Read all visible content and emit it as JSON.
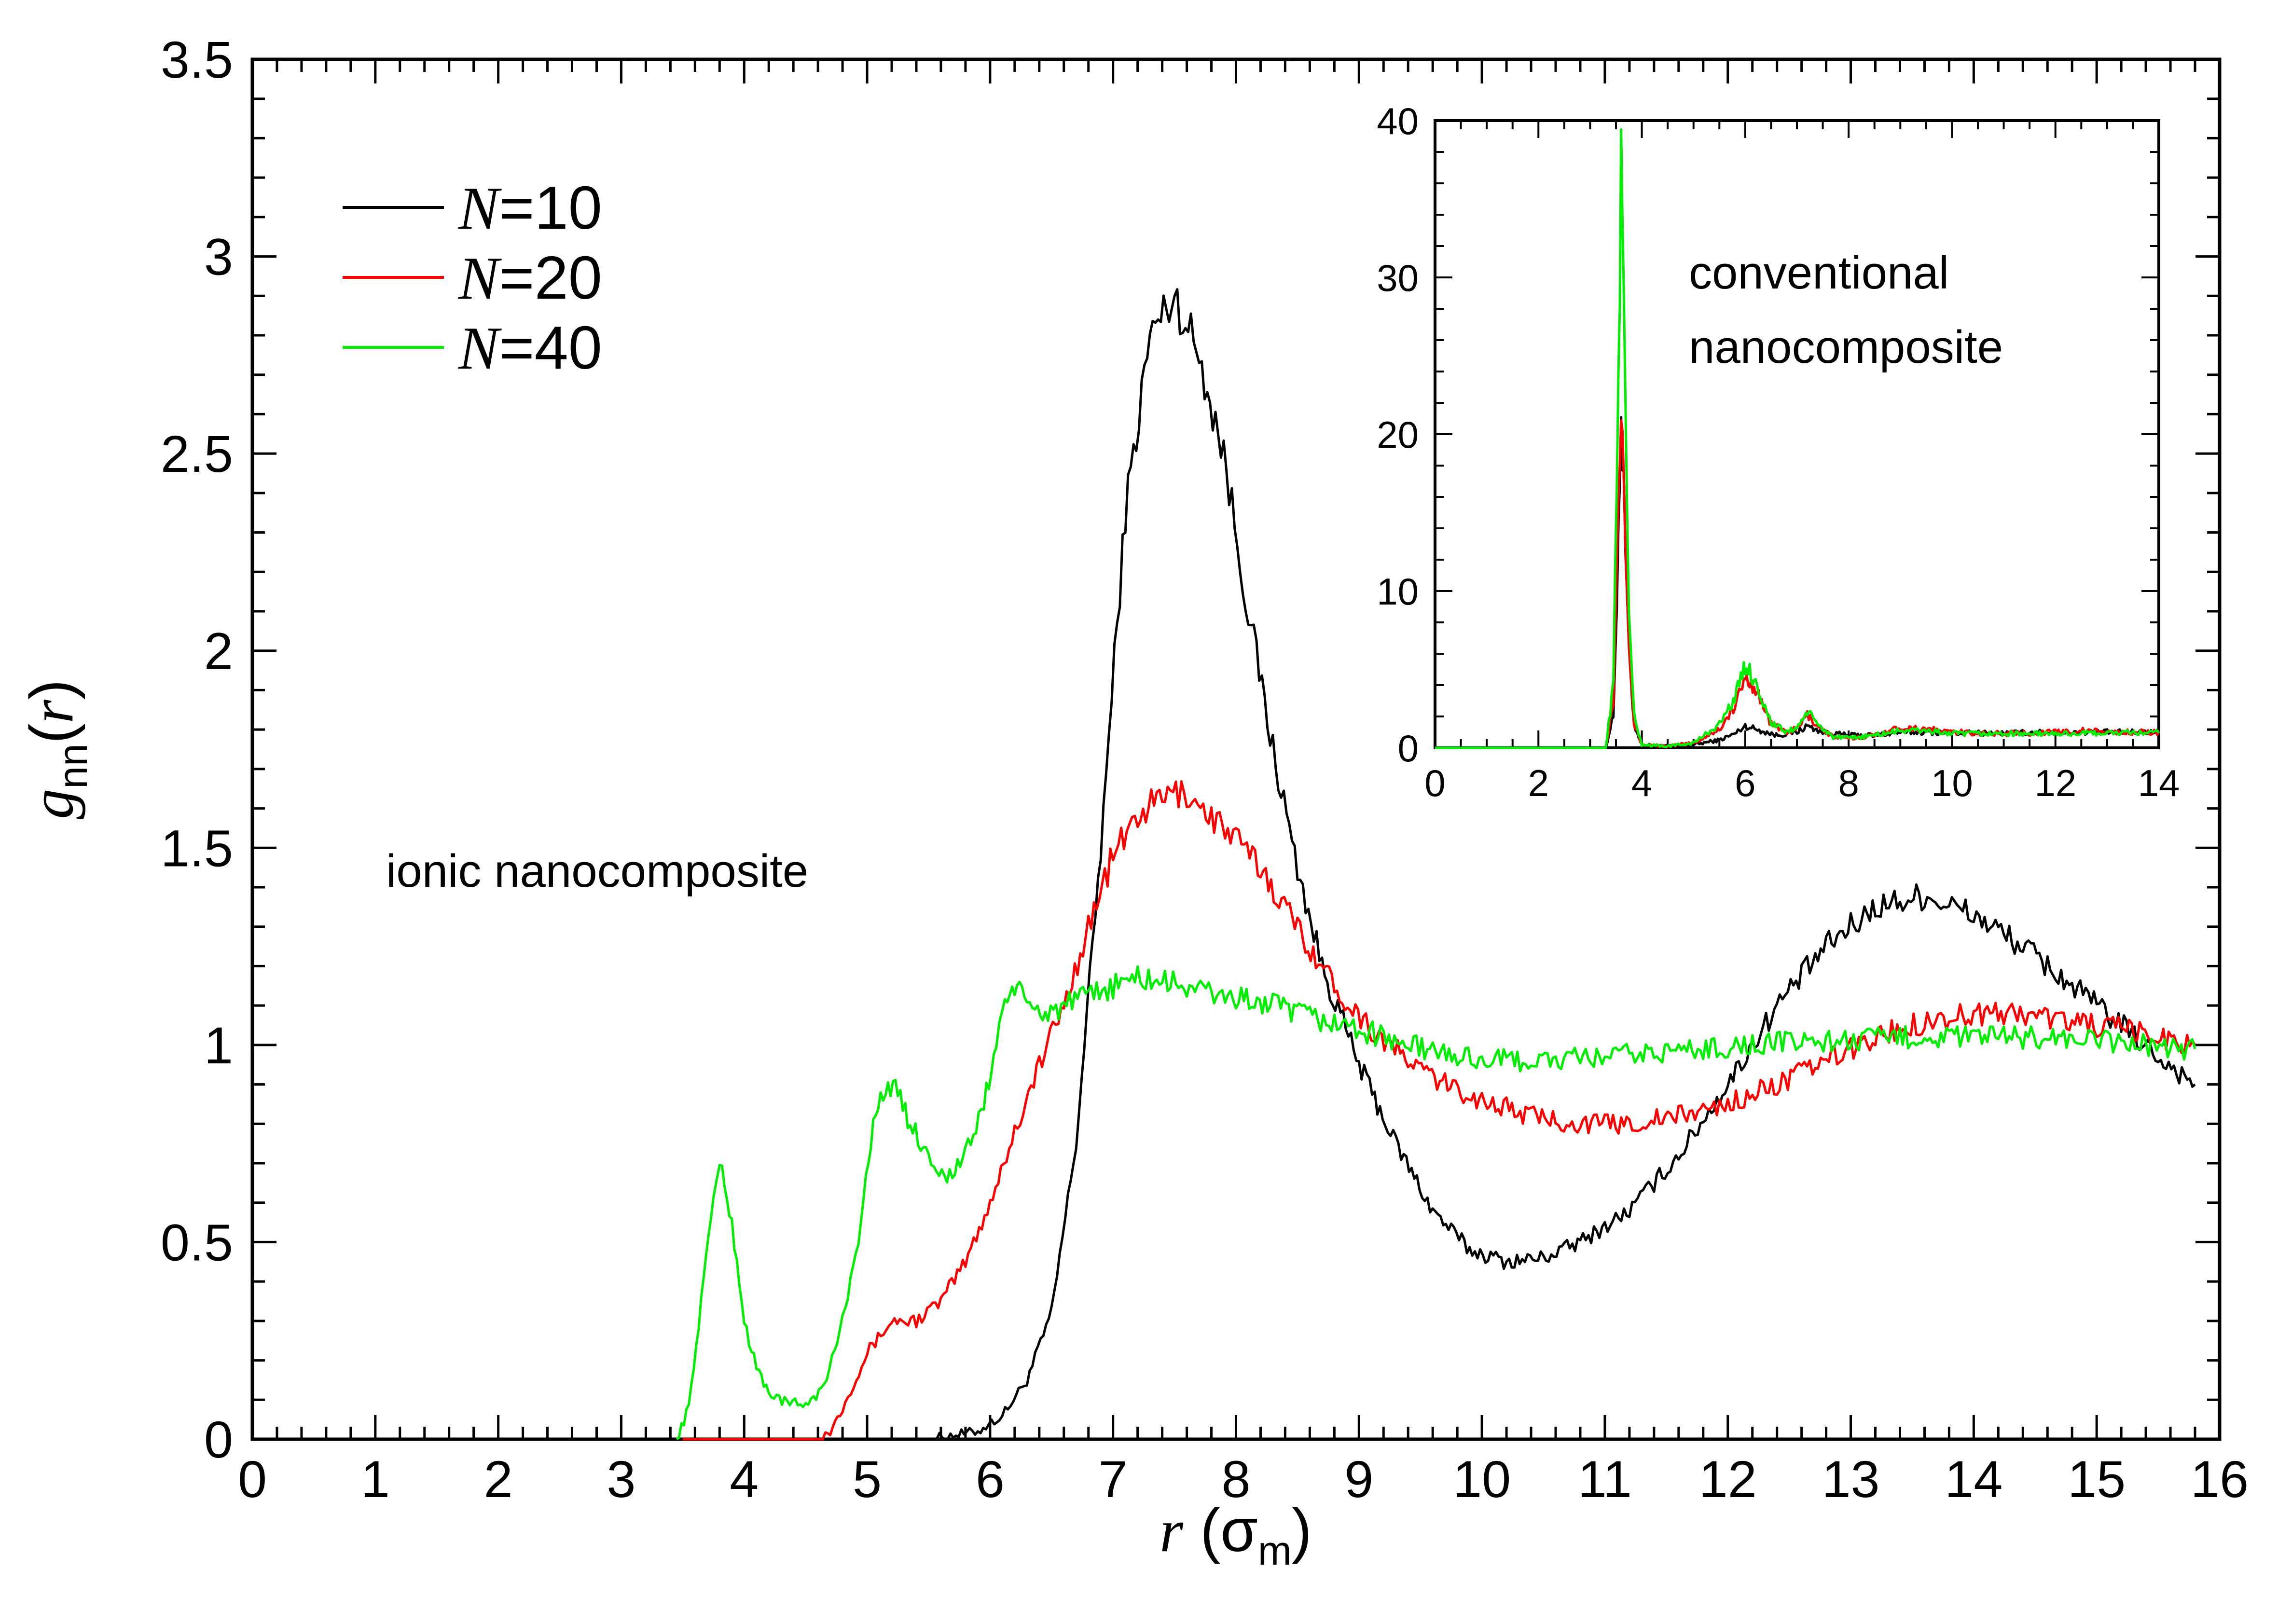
{
  "chart_data": [
    {
      "id": "main",
      "type": "line",
      "ylabel": {
        "symbol": "g",
        "subscript": "nn",
        "open": "(",
        "var": "r",
        "close": ")"
      },
      "xlabel": {
        "var": "r",
        "open": " (",
        "unit": "σ",
        "unit_sub": "m",
        "close": ")"
      },
      "xlim": [
        0,
        16
      ],
      "ylim": [
        0,
        3.5
      ],
      "xticks": [
        0,
        1,
        2,
        3,
        4,
        5,
        6,
        7,
        8,
        9,
        10,
        11,
        12,
        13,
        14,
        15,
        16
      ],
      "yticks": [
        0,
        0.5,
        1,
        1.5,
        2,
        2.5,
        3,
        3.5
      ],
      "xtick_labels": [
        "0",
        "1",
        "2",
        "3",
        "4",
        "5",
        "6",
        "7",
        "8",
        "9",
        "10",
        "11",
        "12",
        "13",
        "14",
        "15",
        "16"
      ],
      "ytick_labels": [
        "0",
        "0.5",
        "1",
        "1.5",
        "2",
        "2.5",
        "3",
        "3.5"
      ],
      "annotation": "ionic nanocomposite",
      "legend_position": "top-left",
      "series": [
        {
          "name_var": "N",
          "name_value": "=10",
          "color": "#000000",
          "x": [
            3.5,
            5.5,
            5.9,
            6.1,
            6.3,
            6.5,
            6.7,
            6.9,
            7.1,
            7.3,
            7.5,
            7.7,
            7.9,
            8.1,
            8.3,
            8.5,
            8.7,
            9.0,
            9.3,
            9.6,
            9.9,
            10.2,
            10.5,
            10.8,
            11.2,
            11.6,
            12.0,
            12.4,
            12.8,
            13.2,
            13.6,
            14.0,
            14.4,
            14.8,
            15.2,
            15.5,
            15.8
          ],
          "y": [
            0,
            0,
            0.02,
            0.06,
            0.15,
            0.32,
            0.75,
            1.5,
            2.35,
            2.8,
            2.9,
            2.75,
            2.5,
            2.1,
            1.75,
            1.45,
            1.2,
            0.95,
            0.75,
            0.58,
            0.48,
            0.45,
            0.46,
            0.5,
            0.58,
            0.72,
            0.9,
            1.1,
            1.25,
            1.35,
            1.38,
            1.33,
            1.25,
            1.15,
            1.05,
            0.97,
            0.9
          ]
        },
        {
          "name_var": "N",
          "name_value": "=20",
          "color": "#ff0000",
          "x": [
            3.5,
            4.6,
            4.7,
            4.8,
            5.0,
            5.2,
            5.4,
            5.6,
            5.8,
            6.0,
            6.2,
            6.4,
            6.6,
            6.8,
            7.0,
            7.2,
            7.4,
            7.6,
            7.8,
            8.0,
            8.2,
            8.5,
            8.8,
            9.1,
            9.4,
            9.7,
            10.0,
            10.4,
            10.8,
            11.2,
            11.6,
            12.0,
            12.4,
            12.8,
            13.2,
            13.6,
            14.0,
            14.4,
            14.8,
            15.2,
            15.5,
            15.8
          ],
          "y": [
            0,
            0,
            0.02,
            0.08,
            0.22,
            0.3,
            0.3,
            0.35,
            0.45,
            0.6,
            0.78,
            0.95,
            1.1,
            1.3,
            1.48,
            1.58,
            1.63,
            1.64,
            1.58,
            1.52,
            1.45,
            1.3,
            1.15,
            1.04,
            0.96,
            0.9,
            0.86,
            0.82,
            0.8,
            0.8,
            0.82,
            0.85,
            0.9,
            0.96,
            1.02,
            1.06,
            1.08,
            1.08,
            1.06,
            1.04,
            1.02,
            1.0
          ]
        },
        {
          "name_var": "N",
          "name_value": "=40",
          "color": "#00ee00",
          "x": [
            3.45,
            3.55,
            3.65,
            3.75,
            3.8,
            3.9,
            4.0,
            4.1,
            4.2,
            4.35,
            4.5,
            4.65,
            4.8,
            4.95,
            5.05,
            5.15,
            5.25,
            5.35,
            5.5,
            5.65,
            5.8,
            5.95,
            6.05,
            6.1,
            6.2,
            6.3,
            6.45,
            6.6,
            6.8,
            7.0,
            7.2,
            7.4,
            7.6,
            7.8,
            8.0,
            8.3,
            8.6,
            9.0,
            9.4,
            9.8,
            10.2,
            10.6,
            11.0,
            11.4,
            11.8,
            12.2,
            12.6,
            13.0,
            13.4,
            13.8,
            14.2,
            14.6,
            15.0,
            15.4,
            15.8
          ],
          "y": [
            0,
            0.08,
            0.35,
            0.62,
            0.7,
            0.55,
            0.3,
            0.18,
            0.12,
            0.09,
            0.09,
            0.13,
            0.3,
            0.55,
            0.8,
            0.9,
            0.88,
            0.8,
            0.72,
            0.66,
            0.72,
            0.85,
            1.0,
            1.1,
            1.15,
            1.1,
            1.08,
            1.1,
            1.12,
            1.15,
            1.17,
            1.16,
            1.15,
            1.13,
            1.12,
            1.1,
            1.07,
            1.04,
            1.0,
            0.97,
            0.96,
            0.96,
            0.97,
            0.98,
            0.99,
            1.0,
            1.01,
            1.01,
            1.02,
            1.02,
            1.02,
            1.02,
            1.01,
            1.0,
            0.99
          ]
        }
      ]
    },
    {
      "id": "inset",
      "type": "line",
      "annotation_lines": [
        "conventional",
        "nanocomposite"
      ],
      "xlim": [
        0,
        14
      ],
      "ylim": [
        0,
        40
      ],
      "xticks": [
        0,
        2,
        4,
        6,
        8,
        10,
        12,
        14
      ],
      "yticks": [
        0,
        10,
        20,
        30,
        40
      ],
      "xtick_labels": [
        "0",
        "2",
        "4",
        "6",
        "8",
        "10",
        "12",
        "14"
      ],
      "ytick_labels": [
        "0",
        "10",
        "20",
        "30",
        "40"
      ],
      "series": [
        {
          "name": "N=10",
          "color": "#000000",
          "x": [
            0,
            3.3,
            3.45,
            3.55,
            3.6,
            3.65,
            3.75,
            3.85,
            4.0,
            4.5,
            5.0,
            5.5,
            5.8,
            6.0,
            6.3,
            6.6,
            7.0,
            7.2,
            7.5,
            8.0,
            8.5,
            9.0,
            9.5,
            10.0,
            11.0,
            12.0,
            13.0,
            14.0
          ],
          "y": [
            0,
            0,
            2,
            14,
            21.5,
            16,
            6,
            1.5,
            0.2,
            0.1,
            0.2,
            0.5,
            0.9,
            1.4,
            1.1,
            0.8,
            1.0,
            1.4,
            1.0,
            0.8,
            0.8,
            1.0,
            1.0,
            0.95,
            0.95,
            1.0,
            1.0,
            1.0
          ]
        },
        {
          "name": "N=20",
          "color": "#ff0000",
          "x": [
            0,
            3.3,
            3.45,
            3.55,
            3.6,
            3.65,
            3.75,
            3.85,
            4.0,
            4.5,
            5.0,
            5.5,
            5.8,
            6.0,
            6.2,
            6.5,
            6.8,
            7.0,
            7.2,
            7.4,
            7.7,
            8.0,
            8.5,
            9.0,
            9.5,
            10.0,
            11.0,
            12.0,
            12.5,
            13.0,
            14.0
          ],
          "y": [
            0,
            0,
            3,
            16,
            23,
            18,
            7,
            1.5,
            0.2,
            0.1,
            0.3,
            1.2,
            2.6,
            4.5,
            3.8,
            1.5,
            1.0,
            1.2,
            2.1,
            1.4,
            0.7,
            0.6,
            0.8,
            1.3,
            1.2,
            1.0,
            0.9,
            1.0,
            1.1,
            1.0,
            1.0
          ]
        },
        {
          "name": "N=40",
          "color": "#00ee00",
          "x": [
            0,
            3.3,
            3.45,
            3.55,
            3.6,
            3.65,
            3.75,
            3.85,
            4.0,
            4.5,
            5.0,
            5.5,
            5.8,
            6.0,
            6.2,
            6.5,
            6.8,
            7.0,
            7.2,
            7.4,
            7.7,
            8.0,
            8.5,
            9.0,
            9.5,
            10.0,
            11.0,
            12.0,
            13.0,
            14.0
          ],
          "y": [
            0,
            0,
            4,
            25,
            37.5,
            28,
            9,
            2,
            0.2,
            0.1,
            0.3,
            1.5,
            3.2,
            5.3,
            4.2,
            1.6,
            1.0,
            1.3,
            2.3,
            1.5,
            0.7,
            0.6,
            0.8,
            1.1,
            1.1,
            0.9,
            0.9,
            0.9,
            0.95,
            0.95
          ]
        }
      ]
    }
  ]
}
